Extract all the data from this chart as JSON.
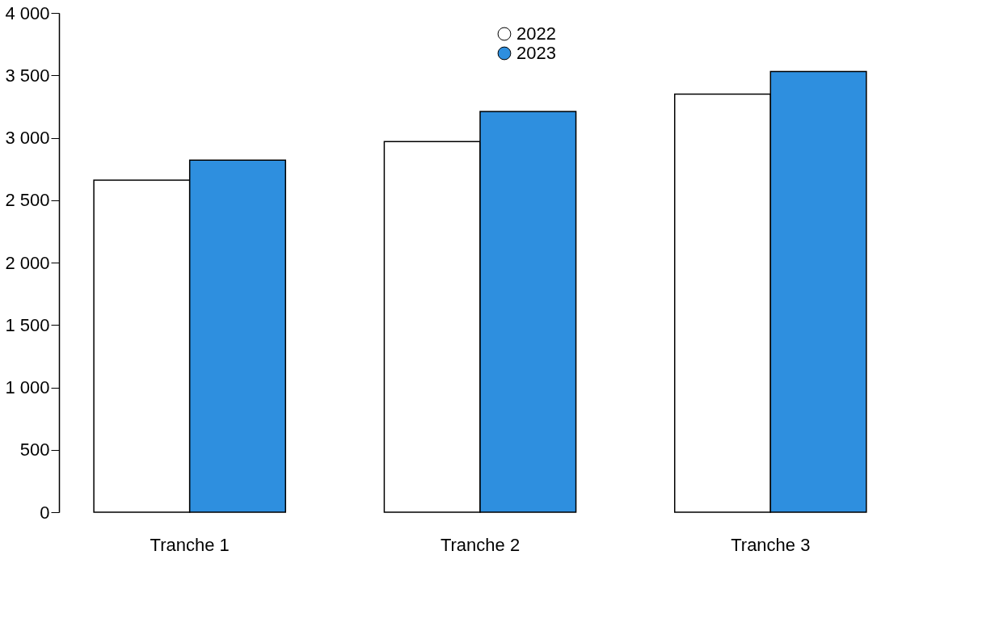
{
  "chart_data": {
    "type": "bar",
    "categories": [
      "Tranche 1",
      "Tranche 2",
      "Tranche 3"
    ],
    "series": [
      {
        "name": "2022",
        "color": "#ffffff",
        "values": [
          2660,
          2970,
          3350
        ]
      },
      {
        "name": "2023",
        "color": "#2e8fdf",
        "values": [
          2820,
          3210,
          3530
        ]
      }
    ],
    "ylim": [
      0,
      4000
    ],
    "yticks": [
      0,
      500,
      {
        "value": 1000,
        "label": "1 000"
      },
      {
        "value": 1500,
        "label": "1 500"
      },
      {
        "value": 2000,
        "label": "2 000"
      },
      {
        "value": 2500,
        "label": "2 500"
      },
      {
        "value": 3000,
        "label": "3 000"
      },
      {
        "value": 3500,
        "label": "3 500"
      },
      {
        "value": 4000,
        "label": "4 000"
      }
    ],
    "grid": false,
    "legend": "top"
  }
}
